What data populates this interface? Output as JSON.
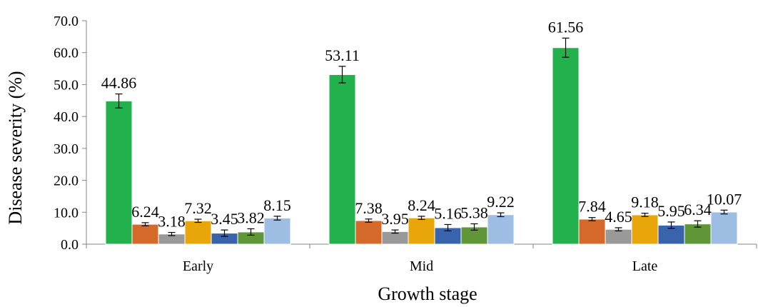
{
  "chart_data": {
    "type": "bar",
    "xlabel": "Growth stage",
    "ylabel": "Disease severity (%)",
    "ylim": [
      0,
      70
    ],
    "yticks": [
      "0.0",
      "10.0",
      "20.0",
      "30.0",
      "40.0",
      "50.0",
      "60.0",
      "70.0"
    ],
    "grid": false,
    "legend": "none",
    "categories": [
      "Early",
      "Mid",
      "Late"
    ],
    "series": [
      {
        "color": "#22b14c",
        "values": [
          44.86,
          53.11,
          61.56
        ],
        "labels": [
          "44.86",
          "53.11",
          "61.56"
        ],
        "errors": [
          2.2,
          2.6,
          3.0
        ]
      },
      {
        "color": "#d4692a",
        "values": [
          6.24,
          7.38,
          7.84
        ],
        "labels": [
          "6.24",
          "7.38",
          "7.84"
        ],
        "errors": [
          0.5,
          0.5,
          0.5
        ]
      },
      {
        "color": "#999999",
        "values": [
          3.18,
          3.95,
          4.65
        ],
        "labels": [
          "3.18",
          "3.95",
          "4.65"
        ],
        "errors": [
          0.5,
          0.5,
          0.5
        ]
      },
      {
        "color": "#e8a60a",
        "values": [
          7.32,
          8.24,
          9.18
        ],
        "labels": [
          "7.32",
          "8.24",
          "9.18"
        ],
        "errors": [
          0.5,
          0.5,
          0.5
        ]
      },
      {
        "color": "#3a63ae",
        "values": [
          3.45,
          5.16,
          5.95
        ],
        "labels": [
          "3.45",
          "5.16",
          "5.95"
        ],
        "errors": [
          1.0,
          1.0,
          1.0
        ]
      },
      {
        "color": "#5f9637",
        "values": [
          3.82,
          5.38,
          6.34
        ],
        "labels": [
          "3.82",
          "5.38",
          "6.34"
        ],
        "errors": [
          1.0,
          1.0,
          1.0
        ]
      },
      {
        "color": "#9dbde2",
        "values": [
          8.15,
          9.22,
          10.07
        ],
        "labels": [
          "8.15",
          "9.22",
          "10.07"
        ],
        "errors": [
          0.6,
          0.6,
          0.6
        ]
      }
    ]
  }
}
